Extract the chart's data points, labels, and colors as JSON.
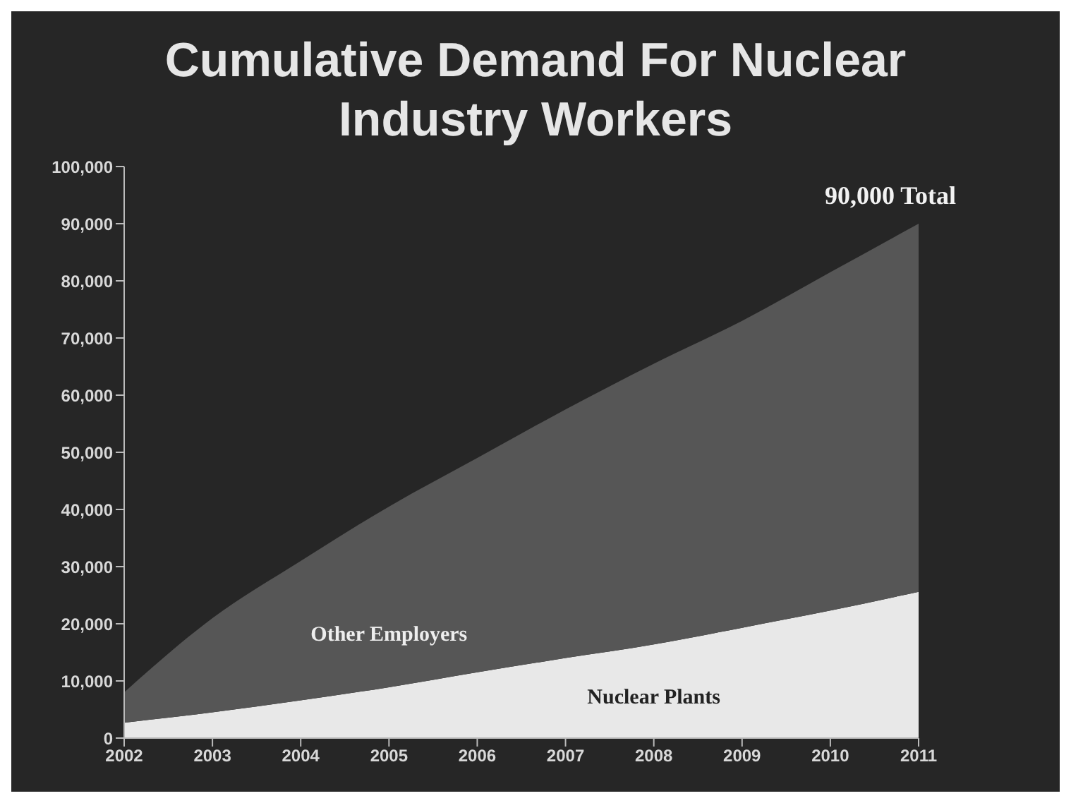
{
  "chart_data": {
    "type": "area",
    "title": "Cumulative Demand For Nuclear Industry Workers",
    "categories": [
      "2002",
      "2003",
      "2004",
      "2005",
      "2006",
      "2007",
      "2008",
      "2009",
      "2010",
      "2011"
    ],
    "stacked": true,
    "series": [
      {
        "name": "Nuclear Plants",
        "color": "#e8e8e8",
        "values": [
          2700,
          4500,
          6600,
          8900,
          11500,
          14000,
          16400,
          19300,
          22300,
          25600
        ]
      },
      {
        "name": "Other Employers",
        "color": "#565656",
        "values": [
          5300,
          16500,
          24400,
          31600,
          37500,
          43500,
          49100,
          53700,
          59200,
          64400
        ]
      }
    ],
    "ylim": [
      0,
      100000
    ],
    "yticks": [
      {
        "value": 0,
        "label": "0"
      },
      {
        "value": 10000,
        "label": "10,000"
      },
      {
        "value": 20000,
        "label": "20,000"
      },
      {
        "value": 30000,
        "label": "30,000"
      },
      {
        "value": 40000,
        "label": "40,000"
      },
      {
        "value": 50000,
        "label": "50,000"
      },
      {
        "value": 60000,
        "label": "60,000"
      },
      {
        "value": 70000,
        "label": "70,000"
      },
      {
        "value": 80000,
        "label": "80,000"
      },
      {
        "value": 90000,
        "label": "90,000"
      },
      {
        "value": 100000,
        "label": "100,000"
      }
    ],
    "annotations": [
      {
        "text": "90,000 Total",
        "x": "2011",
        "y": 90000
      }
    ],
    "legend": false,
    "grid": false
  }
}
